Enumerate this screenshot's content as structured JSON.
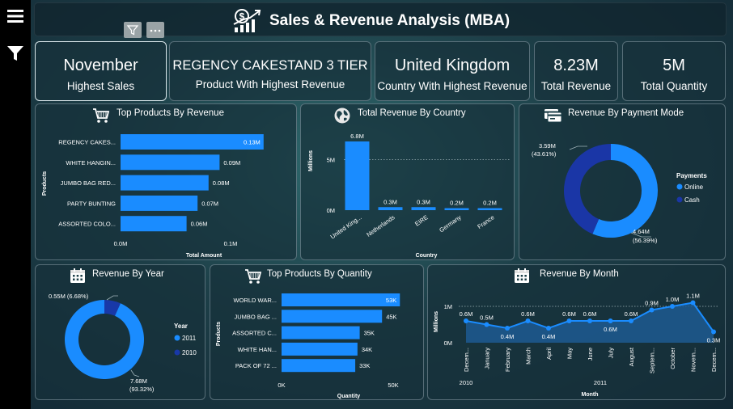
{
  "sidebar": {
    "menu_icon": "hamburger-menu-icon",
    "filter_icon": "filter-icon"
  },
  "header": {
    "title": "Sales & Revenue Analysis (MBA)",
    "title_icon": "money-growth-chart-icon",
    "toolbar_icons": [
      "filter-icon",
      "more-options-icon"
    ],
    "more_label": "···"
  },
  "kpis": [
    {
      "value": "November",
      "label": "Highest Sales"
    },
    {
      "value": "REGENCY CAKESTAND 3 TIER",
      "label": "Product With Highest Revenue"
    },
    {
      "value": "United Kingdom",
      "label": "Country With Highest Revenue"
    },
    {
      "value": "8.23M",
      "label": "Total Revenue"
    },
    {
      "value": "5M",
      "label": "Total Quantity"
    }
  ],
  "colors": {
    "primary": "#1a8cff",
    "secondary": "#1838a8",
    "cash": "#1a36a6",
    "online": "#1a8cff"
  },
  "chart_data": [
    {
      "id": "top-products-revenue",
      "type": "bar",
      "orientation": "horizontal",
      "title": "Top Products By Revenue",
      "xlabel": "Total Amount",
      "ylabel": "Products",
      "categories": [
        "REGENCY CAKES...",
        "WHITE HANGIN...",
        "JUMBO BAG RED...",
        "PARTY BUNTING",
        "ASSORTED COLO..."
      ],
      "values": [
        0.13,
        0.09,
        0.08,
        0.07,
        0.06
      ],
      "data_labels": [
        "0.13M",
        "0.09M",
        "0.08M",
        "0.07M",
        "0.06M"
      ],
      "xlim": [
        0,
        0.1
      ],
      "ticks": [
        "0.0M",
        "0.1M"
      ],
      "icon": "shopping-cart-icon"
    },
    {
      "id": "revenue-by-country",
      "type": "bar",
      "title": "Total Revenue By Country",
      "xlabel": "Country",
      "ylabel": "Millions",
      "categories": [
        "United King...",
        "Netherlands",
        "EIRE",
        "Germany",
        "France"
      ],
      "values": [
        6.8,
        0.3,
        0.3,
        0.2,
        0.2
      ],
      "data_labels": [
        "6.8M",
        "0.3M",
        "0.3M",
        "0.2M",
        "0.2M"
      ],
      "ylim": [
        0,
        6.8
      ],
      "ticks": [
        "0M",
        "5M"
      ],
      "icon": "globe-icon"
    },
    {
      "id": "revenue-by-payment-mode",
      "type": "pie",
      "donut": true,
      "title": "Revenue By Payment Mode",
      "legend_title": "Payments",
      "slices": [
        {
          "name": "Online",
          "value": 4.64,
          "label_value": "4.64M",
          "label_pct": "(56.39%)"
        },
        {
          "name": "Cash",
          "value": 3.59,
          "label_value": "3.59M",
          "label_pct": "(43.61%)"
        }
      ],
      "legend": "right",
      "icon": "payment-card-icon"
    },
    {
      "id": "revenue-by-year",
      "type": "pie",
      "donut": true,
      "title": "Revenue By Year",
      "legend_title": "Year",
      "slices": [
        {
          "name": "2011",
          "value": 7.68,
          "label": "7.68M\n(93.32%)"
        },
        {
          "name": "2010",
          "value": 0.55,
          "label": "0.55M (6.68%)"
        }
      ],
      "label_2011_line1": "7.68M",
      "label_2011_line2": "(93.32%)",
      "label_2010": "0.55M (6.68%)",
      "legend": "right",
      "icon": "calendar-icon"
    },
    {
      "id": "top-products-quantity",
      "type": "bar",
      "orientation": "horizontal",
      "title": "Top Products By Quantity",
      "xlabel": "Quantity",
      "ylabel": "Products",
      "categories": [
        "WORLD WAR...",
        "JUMBO BAG ...",
        "ASSORTED C...",
        "WHITE HAN...",
        "PACK OF 72 ..."
      ],
      "values": [
        53,
        45,
        35,
        34,
        33
      ],
      "data_labels": [
        "53K",
        "45K",
        "35K",
        "34K",
        "33K"
      ],
      "xlim": [
        0,
        50
      ],
      "ticks": [
        "0K",
        "50K"
      ],
      "icon": "shopping-cart-icon"
    },
    {
      "id": "revenue-by-month",
      "type": "area",
      "title": "Revenue By Month",
      "xlabel": "Month",
      "ylabel": "Millions",
      "categories": [
        "Decem...",
        "January",
        "February",
        "March",
        "April",
        "May",
        "June",
        "July",
        "August",
        "Septem...",
        "October",
        "Novem...",
        "Decem..."
      ],
      "values": [
        0.6,
        0.5,
        0.4,
        0.6,
        0.4,
        0.6,
        0.6,
        0.6,
        0.6,
        0.9,
        1.0,
        1.1,
        0.3
      ],
      "data_labels": [
        "0.6M",
        "0.5M",
        "0.4M",
        "0.6M",
        "0.4M",
        "0.6M",
        "0.6M",
        "0.6M",
        "0.6M",
        "0.9M",
        "1.0M",
        "1.1M",
        "0.3M"
      ],
      "year_labels": [
        "2010",
        "2011"
      ],
      "ylim": [
        0,
        1
      ],
      "ticks": [
        "0M",
        "1M"
      ],
      "icon": "calendar-icon"
    }
  ]
}
